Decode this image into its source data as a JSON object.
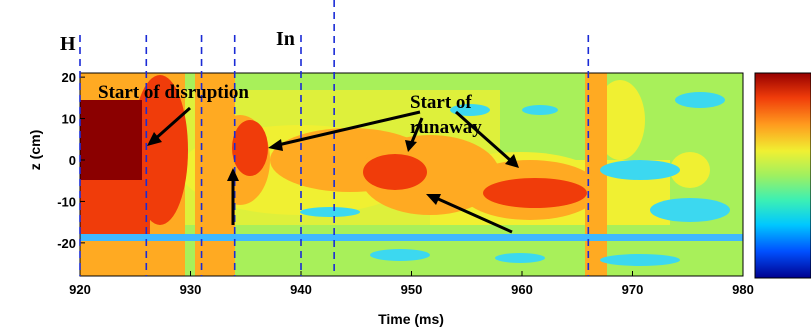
{
  "chart_data": {
    "type": "heatmap",
    "title": "",
    "xlabel": "Time (ms)",
    "ylabel": "z (cm)",
    "xlim": [
      920,
      980
    ],
    "ylim": [
      -28,
      21
    ],
    "x_ticks": [
      920,
      930,
      940,
      950,
      960,
      970,
      980
    ],
    "y_ticks": [
      20,
      10,
      0,
      -10,
      -20
    ],
    "grid": false,
    "colormap": [
      "#00008f",
      "#0050ff",
      "#00c8ff",
      "#3cf0b4",
      "#9ff060",
      "#f0f032",
      "#ffb428",
      "#ff7814",
      "#f03c0a",
      "#960000"
    ],
    "colorbar_labels": [],
    "vertical_markers_ms": [
      920,
      926,
      931,
      934,
      940,
      943,
      966
    ],
    "marker_labels": [
      {
        "text": "H",
        "x_ms": 920
      },
      {
        "text": "In",
        "x_ms": 940
      }
    ],
    "annotations": [
      {
        "text": "Start of disruption"
      },
      {
        "text": "Start of"
      },
      {
        "text": "runaway"
      }
    ]
  }
}
